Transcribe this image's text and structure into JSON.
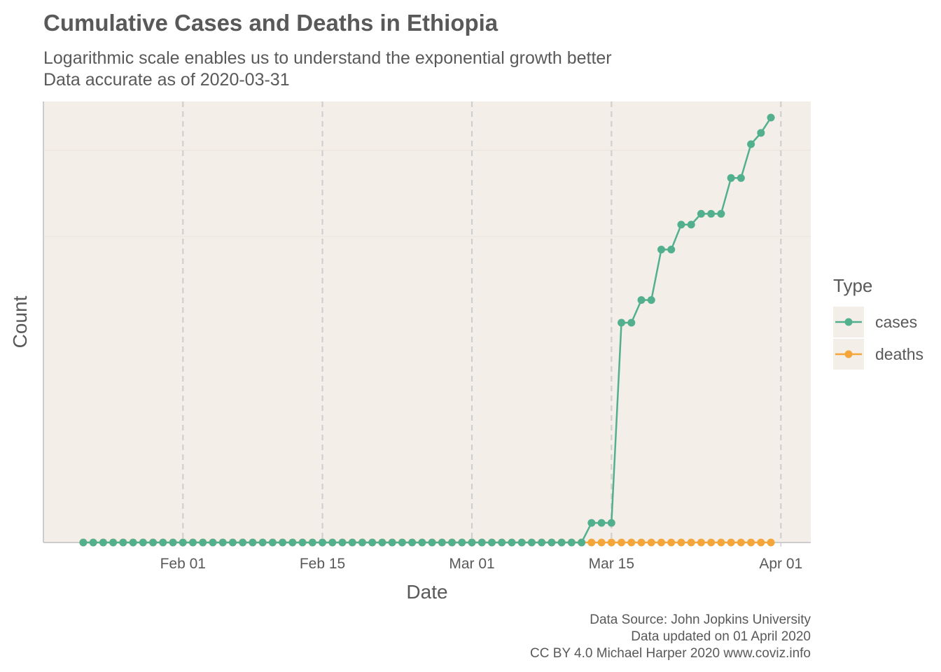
{
  "chart_data": {
    "type": "line",
    "title": "Cumulative Cases and Deaths in Ethiopia",
    "subtitle": [
      "Logarithmic scale enables us to understand the exponential growth better",
      "Data accurate as of 2020-03-31"
    ],
    "x_label": "Date",
    "y_label": "Count",
    "caption": [
      "Data Source: John Jopkins University",
      "Data updated on 01 April 2020",
      "CC BY 4.0 Michael Harper 2020 www.coviz.info"
    ],
    "legend_title": "Type",
    "legend": "right",
    "log_scale": true,
    "grid": true,
    "x": [
      "01-22",
      "01-23",
      "01-24",
      "01-25",
      "01-26",
      "01-27",
      "01-28",
      "01-29",
      "01-30",
      "01-31",
      "02-01",
      "02-02",
      "02-03",
      "02-04",
      "02-05",
      "02-06",
      "02-07",
      "02-08",
      "02-09",
      "02-10",
      "02-11",
      "02-12",
      "02-13",
      "02-14",
      "02-15",
      "02-16",
      "02-17",
      "02-18",
      "02-19",
      "02-20",
      "02-21",
      "02-22",
      "02-23",
      "02-24",
      "02-25",
      "02-26",
      "02-27",
      "02-28",
      "02-29",
      "03-01",
      "03-02",
      "03-03",
      "03-04",
      "03-05",
      "03-06",
      "03-07",
      "03-08",
      "03-09",
      "03-10",
      "03-11",
      "03-12",
      "03-13",
      "03-14",
      "03-15",
      "03-16",
      "03-17",
      "03-18",
      "03-19",
      "03-20",
      "03-21",
      "03-22",
      "03-23",
      "03-24",
      "03-25",
      "03-26",
      "03-27",
      "03-28",
      "03-29",
      "03-30",
      "03-31"
    ],
    "series": [
      {
        "name": "cases",
        "color": "#52b08f",
        "values": [
          0,
          0,
          0,
          0,
          0,
          0,
          0,
          0,
          0,
          0,
          0,
          0,
          0,
          0,
          0,
          0,
          0,
          0,
          0,
          0,
          0,
          0,
          0,
          0,
          0,
          0,
          0,
          0,
          0,
          0,
          0,
          0,
          0,
          0,
          0,
          0,
          0,
          0,
          0,
          0,
          0,
          0,
          0,
          0,
          0,
          0,
          0,
          0,
          0,
          0,
          0,
          1,
          1,
          1,
          5,
          5,
          6,
          6,
          9,
          9,
          11,
          11,
          12,
          12,
          12,
          16,
          16,
          21,
          23,
          26
        ]
      },
      {
        "name": "deaths",
        "color": "#f5a63b",
        "values": [
          0,
          0,
          0,
          0,
          0,
          0,
          0,
          0,
          0,
          0,
          0,
          0,
          0,
          0,
          0,
          0,
          0,
          0,
          0,
          0,
          0,
          0,
          0,
          0,
          0,
          0,
          0,
          0,
          0,
          0,
          0,
          0,
          0,
          0,
          0,
          0,
          0,
          0,
          0,
          0,
          0,
          0,
          0,
          0,
          0,
          0,
          0,
          0,
          0,
          0,
          0,
          0,
          0,
          0,
          0,
          0,
          0,
          0,
          0,
          0,
          0,
          0,
          0,
          0,
          0,
          0,
          0,
          0,
          0,
          0
        ]
      }
    ],
    "xlim": [
      "01-18",
      "04-04"
    ],
    "xticks": [
      {
        "value": "02-01",
        "label": "Feb 01"
      },
      {
        "value": "02-15",
        "label": "Feb 15"
      },
      {
        "value": "03-01",
        "label": "Mar 01"
      },
      {
        "value": "03-15",
        "label": "Mar 15"
      },
      {
        "value": "04-01",
        "label": "Apr 01"
      }
    ],
    "ylim": [
      0.854,
      29.6
    ],
    "yticks": [
      10,
      20
    ]
  }
}
